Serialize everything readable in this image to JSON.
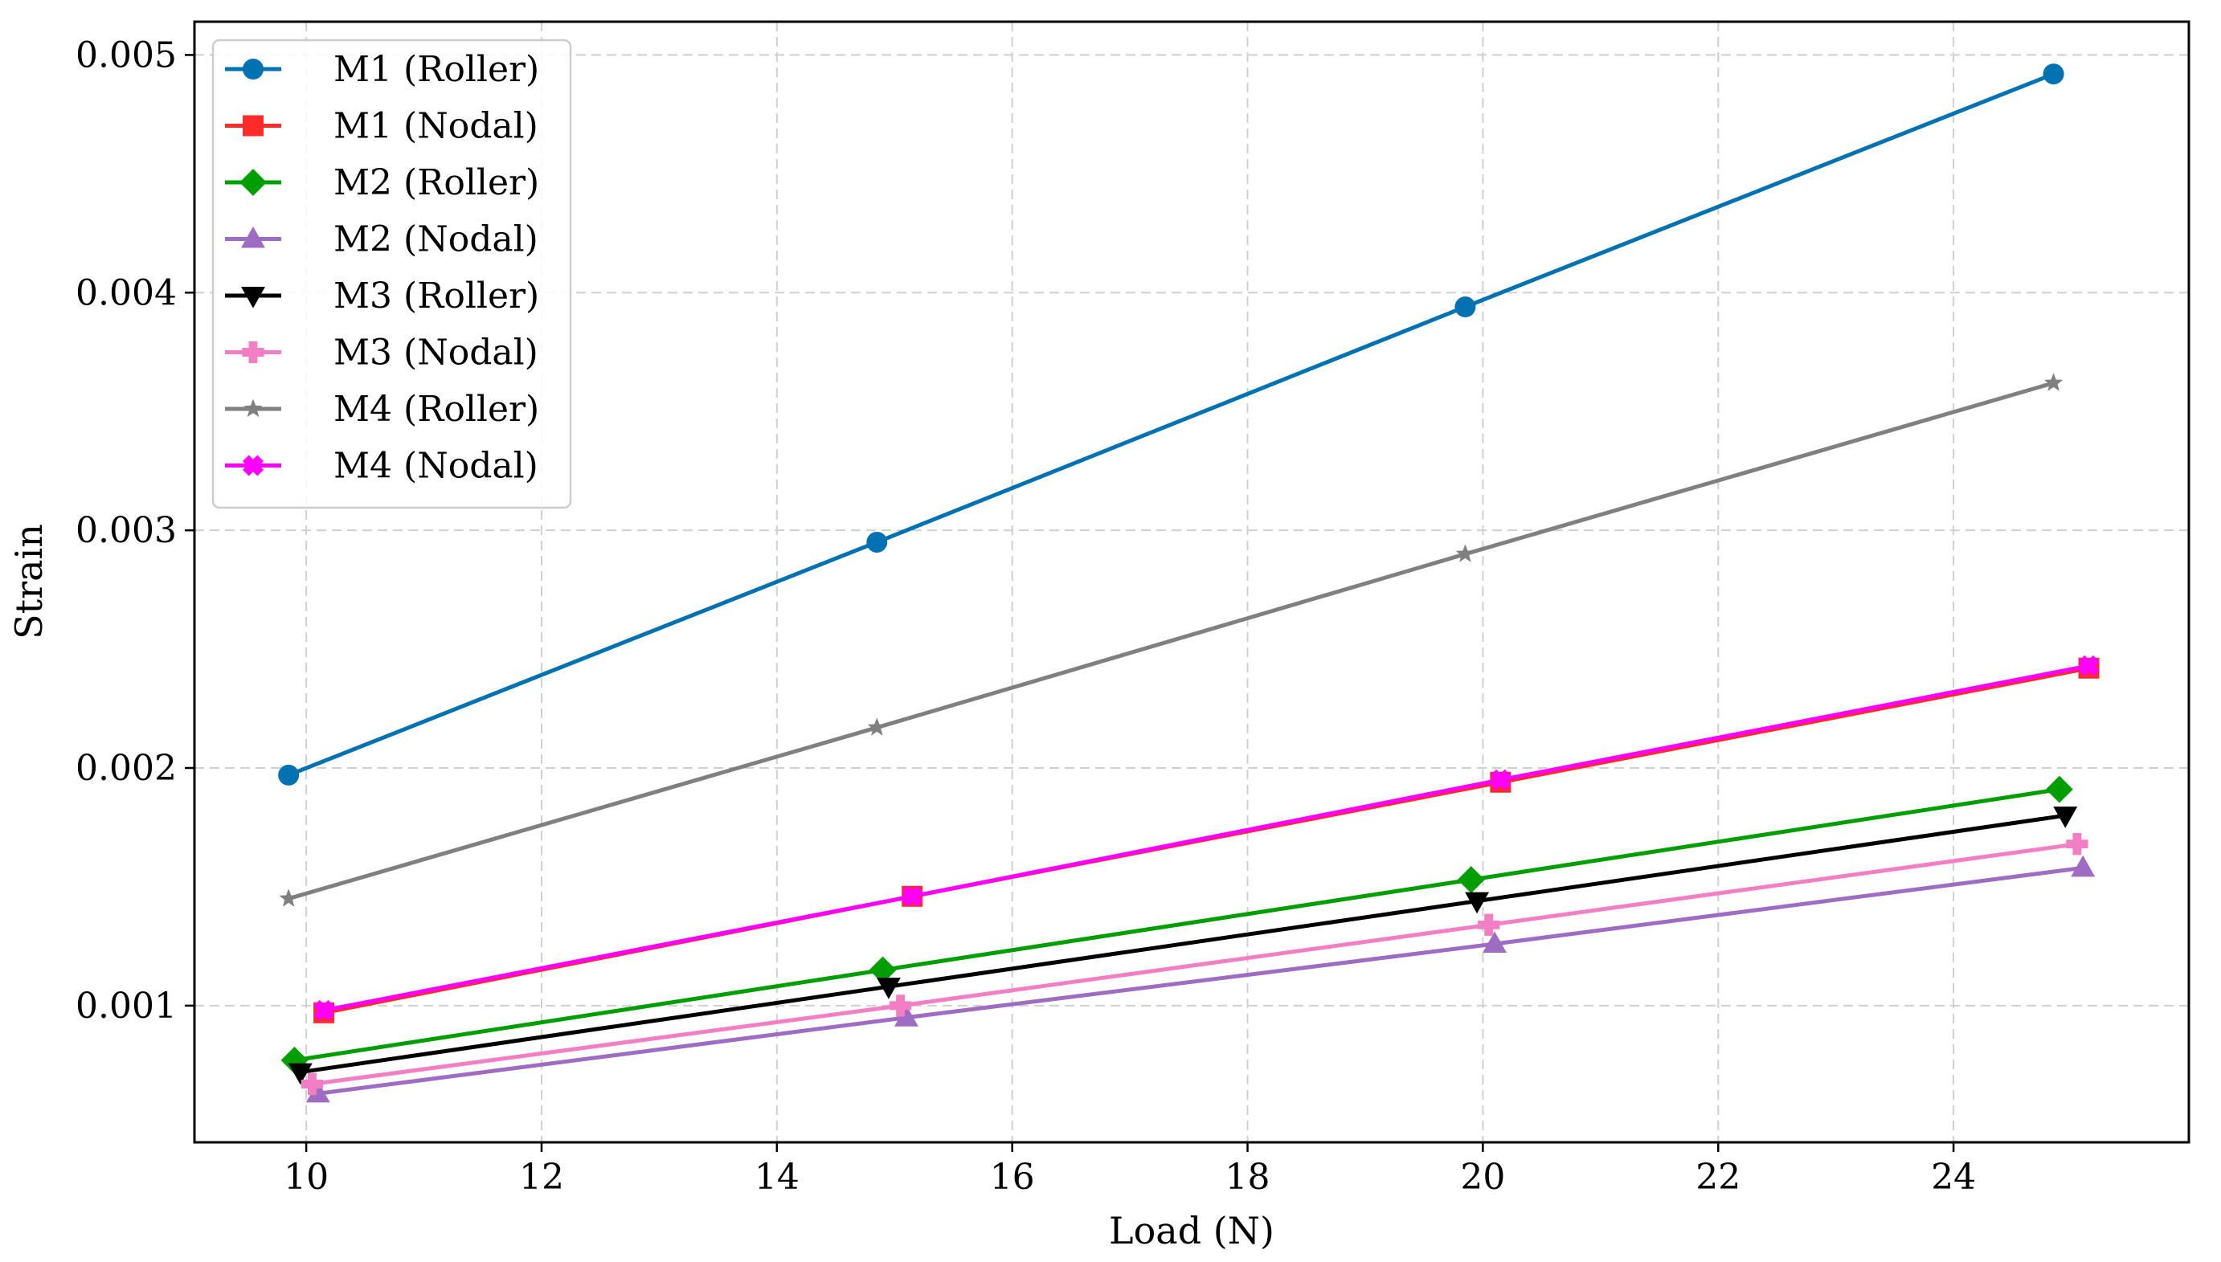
{
  "chart_data": {
    "type": "line",
    "title": "",
    "xlabel": "Load (N)",
    "ylabel": "Strain",
    "xlim": [
      9.05,
      26.0
    ],
    "ylim": [
      0.000425,
      0.00514
    ],
    "xticks": [
      10,
      12,
      14,
      16,
      18,
      20,
      22,
      24
    ],
    "xtick_labels": [
      "10",
      "12",
      "14",
      "16",
      "18",
      "20",
      "22",
      "24"
    ],
    "yticks": [
      0.001,
      0.002,
      0.003,
      0.004,
      0.005
    ],
    "ytick_labels": [
      "0.001",
      "0.002",
      "0.003",
      "0.004",
      "0.005"
    ],
    "grid": true,
    "legend_position": "top-left",
    "series": [
      {
        "name": "M1 (Roller)",
        "color": "#0072B2",
        "marker": "circle",
        "x": [
          9.85,
          14.85,
          19.85,
          24.85
        ],
        "values": [
          0.00197,
          0.00295,
          0.00394,
          0.00492
        ]
      },
      {
        "name": "M1 (Nodal)",
        "color": "#FF2A2A",
        "marker": "square",
        "x": [
          10.15,
          15.15,
          20.15,
          25.15
        ],
        "values": [
          0.00097,
          0.00146,
          0.00194,
          0.00242
        ]
      },
      {
        "name": "M2 (Roller)",
        "color": "#009E00",
        "marker": "diamond",
        "x": [
          9.9,
          14.9,
          19.9,
          24.9
        ],
        "values": [
          0.00077,
          0.00115,
          0.00153,
          0.00191
        ]
      },
      {
        "name": "M2 (Nodal)",
        "color": "#9F6CC4",
        "marker": "triangle-up",
        "x": [
          10.1,
          15.1,
          20.1,
          25.1
        ],
        "values": [
          0.00063,
          0.00095,
          0.00126,
          0.00158
        ]
      },
      {
        "name": "M3 (Roller)",
        "color": "#000000",
        "marker": "triangle-down",
        "x": [
          9.95,
          14.95,
          19.95,
          24.95
        ],
        "values": [
          0.00072,
          0.00108,
          0.00144,
          0.0018
        ]
      },
      {
        "name": "M3 (Nodal)",
        "color": "#F27EC4",
        "marker": "plus",
        "x": [
          10.05,
          15.05,
          20.05,
          25.05
        ],
        "values": [
          0.00067,
          0.001,
          0.00134,
          0.00168
        ]
      },
      {
        "name": "M4 (Roller)",
        "color": "#808080",
        "marker": "star",
        "x": [
          9.85,
          14.85,
          19.85,
          24.85
        ],
        "values": [
          0.00145,
          0.00217,
          0.0029,
          0.00362
        ]
      },
      {
        "name": "M4 (Nodal)",
        "color": "#FF00FF",
        "marker": "x",
        "x": [
          10.15,
          15.15,
          20.15,
          25.15
        ],
        "values": [
          0.00098,
          0.00146,
          0.00195,
          0.00243
        ]
      }
    ]
  }
}
